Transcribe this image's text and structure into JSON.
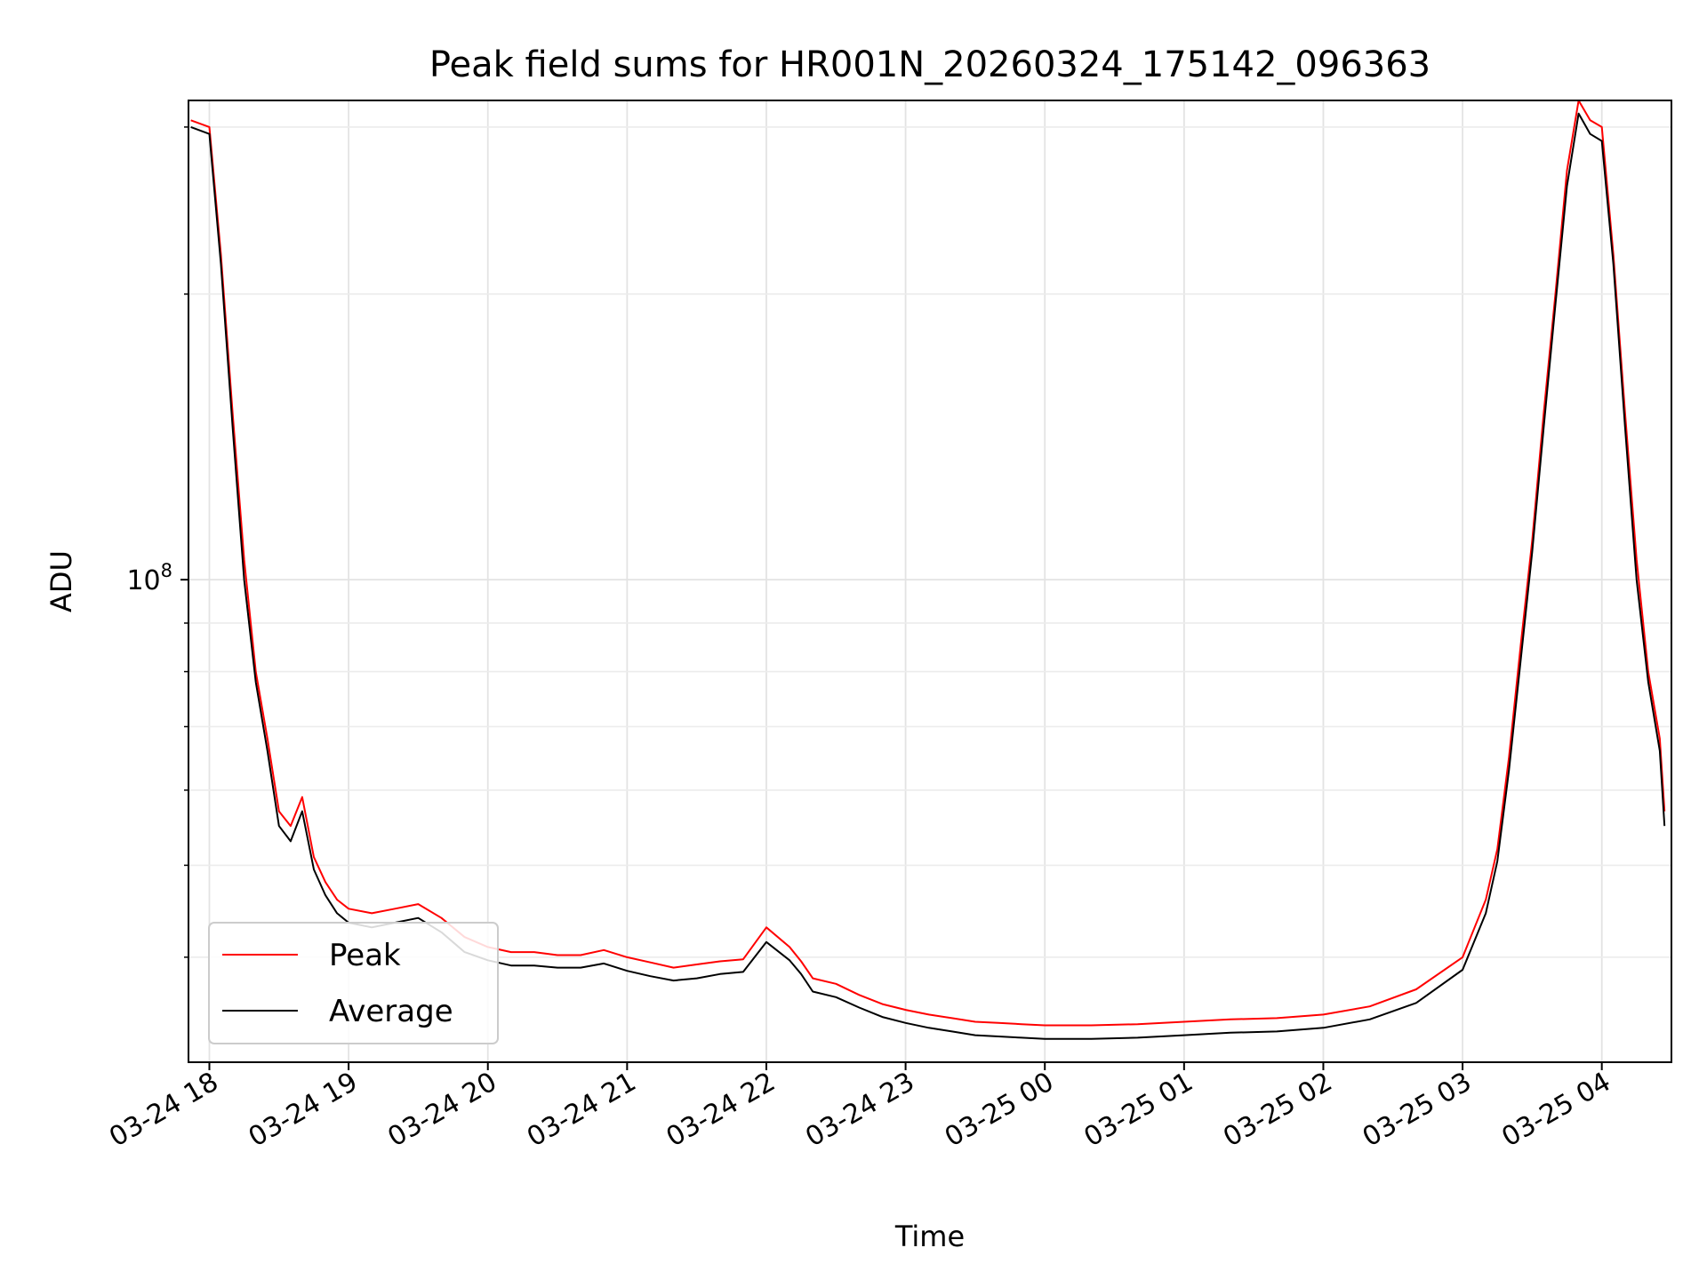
{
  "chart_data": {
    "type": "line",
    "title": "Peak field sums for HR001N_20260324_175142_096363",
    "xlabel": "Time",
    "ylabel": "ADU",
    "yscale": "log",
    "grid": true,
    "legend_position": "bottom-left",
    "xlim": [
      "03-24 17:51",
      "03-25 04:30"
    ],
    "ylim": [
      31000000.0,
      320000000.0
    ],
    "x_ticks": [
      "03-24 18",
      "03-24 19",
      "03-24 20",
      "03-24 21",
      "03-24 22",
      "03-24 23",
      "03-25 00",
      "03-25 01",
      "03-25 02",
      "03-25 03",
      "03-25 04"
    ],
    "y_ticks": [
      {
        "value": 100000000.0,
        "base": "10",
        "exp": "8"
      }
    ],
    "y_minor_ticks": [
      40000000.0,
      50000000.0,
      60000000.0,
      70000000.0,
      80000000.0,
      90000000.0,
      200000000.0,
      300000000.0
    ],
    "x_times": [
      "17:52",
      "18:00",
      "18:05",
      "18:10",
      "18:15",
      "18:20",
      "18:25",
      "18:30",
      "18:35",
      "18:40",
      "18:45",
      "18:50",
      "18:55",
      "19:00",
      "19:10",
      "19:20",
      "19:30",
      "19:40",
      "19:50",
      "20:00",
      "20:10",
      "20:20",
      "20:30",
      "20:40",
      "20:50",
      "21:00",
      "21:10",
      "21:20",
      "21:30",
      "21:40",
      "21:50",
      "22:00",
      "22:10",
      "22:15",
      "22:20",
      "22:30",
      "22:40",
      "22:50",
      "23:00",
      "23:10",
      "23:20",
      "23:30",
      "23:40",
      "23:50",
      "00:00",
      "00:20",
      "00:40",
      "01:00",
      "01:20",
      "01:40",
      "02:00",
      "02:20",
      "02:40",
      "03:00",
      "03:10",
      "03:15",
      "03:20",
      "03:25",
      "03:30",
      "03:35",
      "03:40",
      "03:45",
      "03:50",
      "03:55",
      "04:00",
      "04:05",
      "04:10",
      "04:15",
      "04:20",
      "04:25",
      "04:27"
    ],
    "series": [
      {
        "name": "Peak",
        "color": "#ff0000",
        "values": [
          305000000.0,
          300000000.0,
          220000000.0,
          150000000.0,
          105000000.0,
          80000000.0,
          68000000.0,
          57000000.0,
          55000000.0,
          59000000.0,
          51000000.0,
          48000000.0,
          46000000.0,
          45000000.0,
          44500000.0,
          45000000.0,
          45500000.0,
          44000000.0,
          42000000.0,
          41000000.0,
          40500000.0,
          40500000.0,
          40200000.0,
          40200000.0,
          40700000.0,
          40000000.0,
          39500000.0,
          39000000.0,
          39300000.0,
          39600000.0,
          39800000.0,
          43000000.0,
          41000000.0,
          39600000.0,
          38000000.0,
          37500000.0,
          36500000.0,
          35700000.0,
          35200000.0,
          34800000.0,
          34500000.0,
          34200000.0,
          34100000.0,
          34000000.0,
          33900000.0,
          33900000.0,
          34000000.0,
          34200000.0,
          34400000.0,
          34500000.0,
          34800000.0,
          35500000.0,
          37000000.0,
          40000000.0,
          46000000.0,
          52000000.0,
          65000000.0,
          85000000.0,
          110000000.0,
          150000000.0,
          200000000.0,
          270000000.0,
          320000000.0,
          305000000.0,
          300000000.0,
          220000000.0,
          150000000.0,
          105000000.0,
          80000000.0,
          68000000.0,
          57000000.0
        ]
      },
      {
        "name": "Average",
        "color": "#000000",
        "values": [
          300000000.0,
          295000000.0,
          215000000.0,
          145000000.0,
          100000000.0,
          78000000.0,
          66000000.0,
          55000000.0,
          53000000.0,
          57000000.0,
          49500000.0,
          46500000.0,
          44500000.0,
          43500000.0,
          43000000.0,
          43500000.0,
          44000000.0,
          42500000.0,
          40500000.0,
          39700000.0,
          39200000.0,
          39200000.0,
          39000000.0,
          39000000.0,
          39400000.0,
          38700000.0,
          38200000.0,
          37800000.0,
          38000000.0,
          38400000.0,
          38600000.0,
          41500000.0,
          39700000.0,
          38400000.0,
          36800000.0,
          36300000.0,
          35400000.0,
          34600000.0,
          34100000.0,
          33700000.0,
          33400000.0,
          33100000.0,
          33000000.0,
          32900000.0,
          32800000.0,
          32800000.0,
          32900000.0,
          33100000.0,
          33300000.0,
          33400000.0,
          33700000.0,
          34400000.0,
          35800000.0,
          38800000.0,
          44500000.0,
          50500000.0,
          63000000.0,
          82000000.0,
          107000000.0,
          145000000.0,
          195000000.0,
          260000000.0,
          310000000.0,
          295000000.0,
          290000000.0,
          215000000.0,
          145000000.0,
          100000000.0,
          78000000.0,
          66000000.0,
          55000000.0
        ]
      }
    ]
  }
}
